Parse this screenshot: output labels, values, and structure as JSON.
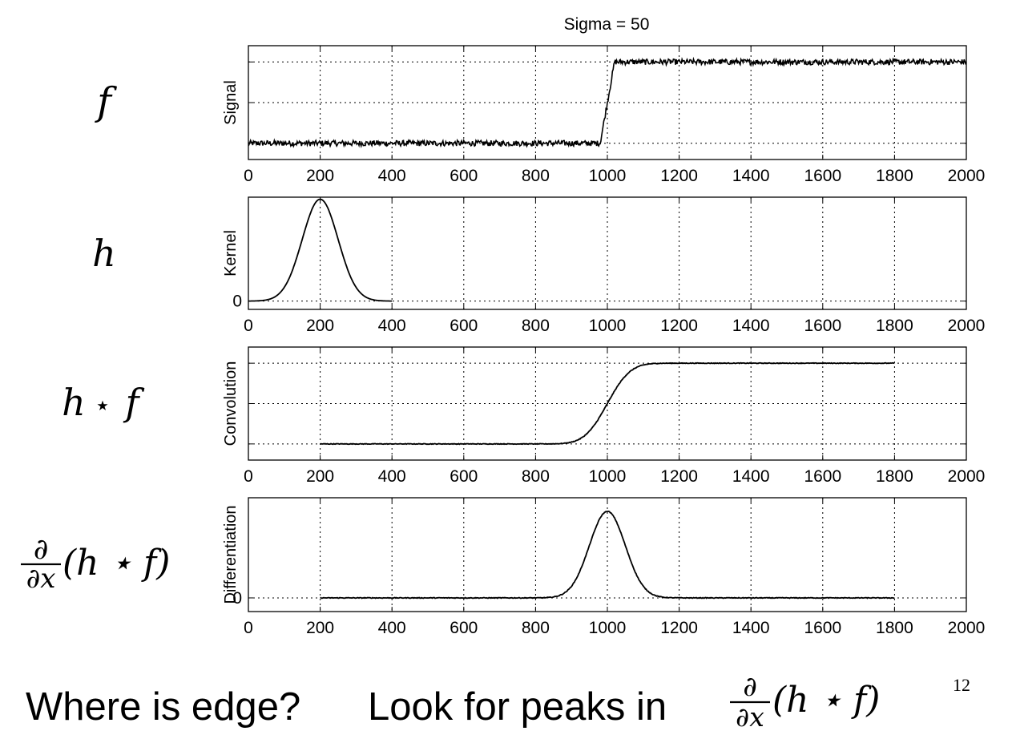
{
  "figure_title": "Sigma = 50",
  "math_labels": {
    "f": "f",
    "h": "h",
    "conv_h": "h",
    "conv_op": "⋆",
    "conv_f": "f",
    "partial": "∂",
    "dx": "∂x",
    "paren_expr": "(h ⋆ f)"
  },
  "bottom": {
    "question": "Where is edge?",
    "answer": "Look for peaks in",
    "partial": "∂",
    "dx": "∂x",
    "paren_expr": "(h ⋆ f)",
    "page_number": "12"
  },
  "chart_data": [
    {
      "type": "line",
      "name": "signal",
      "ylabel": "Signal",
      "xlim": [
        0,
        2000
      ],
      "xticks": [
        "0",
        "200",
        "400",
        "600",
        "800",
        "1000",
        "1200",
        "1400",
        "1600",
        "1800",
        "2000"
      ],
      "ylim": [
        -0.2,
        1.2
      ],
      "ygrid": [
        0,
        0.5,
        1
      ],
      "yticklabels": [],
      "curve": "step",
      "params": {
        "x0": 0,
        "x1": 2000,
        "edge_start": 980,
        "edge_end": 1020,
        "low": 0,
        "high": 1,
        "noise": 0.035
      }
    },
    {
      "type": "line",
      "name": "kernel",
      "ylabel": "Kernel",
      "xlim": [
        0,
        2000
      ],
      "xticks": [
        "0",
        "200",
        "400",
        "600",
        "800",
        "1000",
        "1200",
        "1400",
        "1600",
        "1800",
        "2000"
      ],
      "ylim": [
        -0.08,
        1.0
      ],
      "ygrid": [
        0
      ],
      "yticklabels": [
        {
          "value": 0,
          "label": "0"
        }
      ],
      "curve": "gaussian",
      "params": {
        "x0": 0,
        "x1": 400,
        "mu": 200,
        "sigma": 50,
        "amp": 0.98,
        "noise": 0
      }
    },
    {
      "type": "line",
      "name": "convolution",
      "ylabel": "Convolution",
      "xlim": [
        0,
        2000
      ],
      "xticks": [
        "0",
        "200",
        "400",
        "600",
        "800",
        "1000",
        "1200",
        "1400",
        "1600",
        "1800",
        "2000"
      ],
      "ylim": [
        -0.2,
        1.2
      ],
      "ygrid": [
        0,
        0.5,
        1
      ],
      "yticklabels": [],
      "curve": "erf",
      "params": {
        "x0": 200,
        "x1": 1800,
        "mu": 1000,
        "sigma": 50,
        "low": 0,
        "high": 1,
        "noise": 0.004
      }
    },
    {
      "type": "line",
      "name": "differentiation",
      "ylabel": "Differentiation",
      "xlim": [
        0,
        2000
      ],
      "xticks": [
        "0",
        "200",
        "400",
        "600",
        "800",
        "1000",
        "1200",
        "1400",
        "1600",
        "1800",
        "2000"
      ],
      "ylim": [
        -0.12,
        0.88
      ],
      "ygrid": [
        0
      ],
      "yticklabels": [
        {
          "value": 0,
          "label": "0"
        }
      ],
      "curve": "gaussian",
      "params": {
        "x0": 200,
        "x1": 1800,
        "mu": 1000,
        "sigma": 50,
        "amp": 0.76,
        "noise": 0.003
      }
    }
  ]
}
